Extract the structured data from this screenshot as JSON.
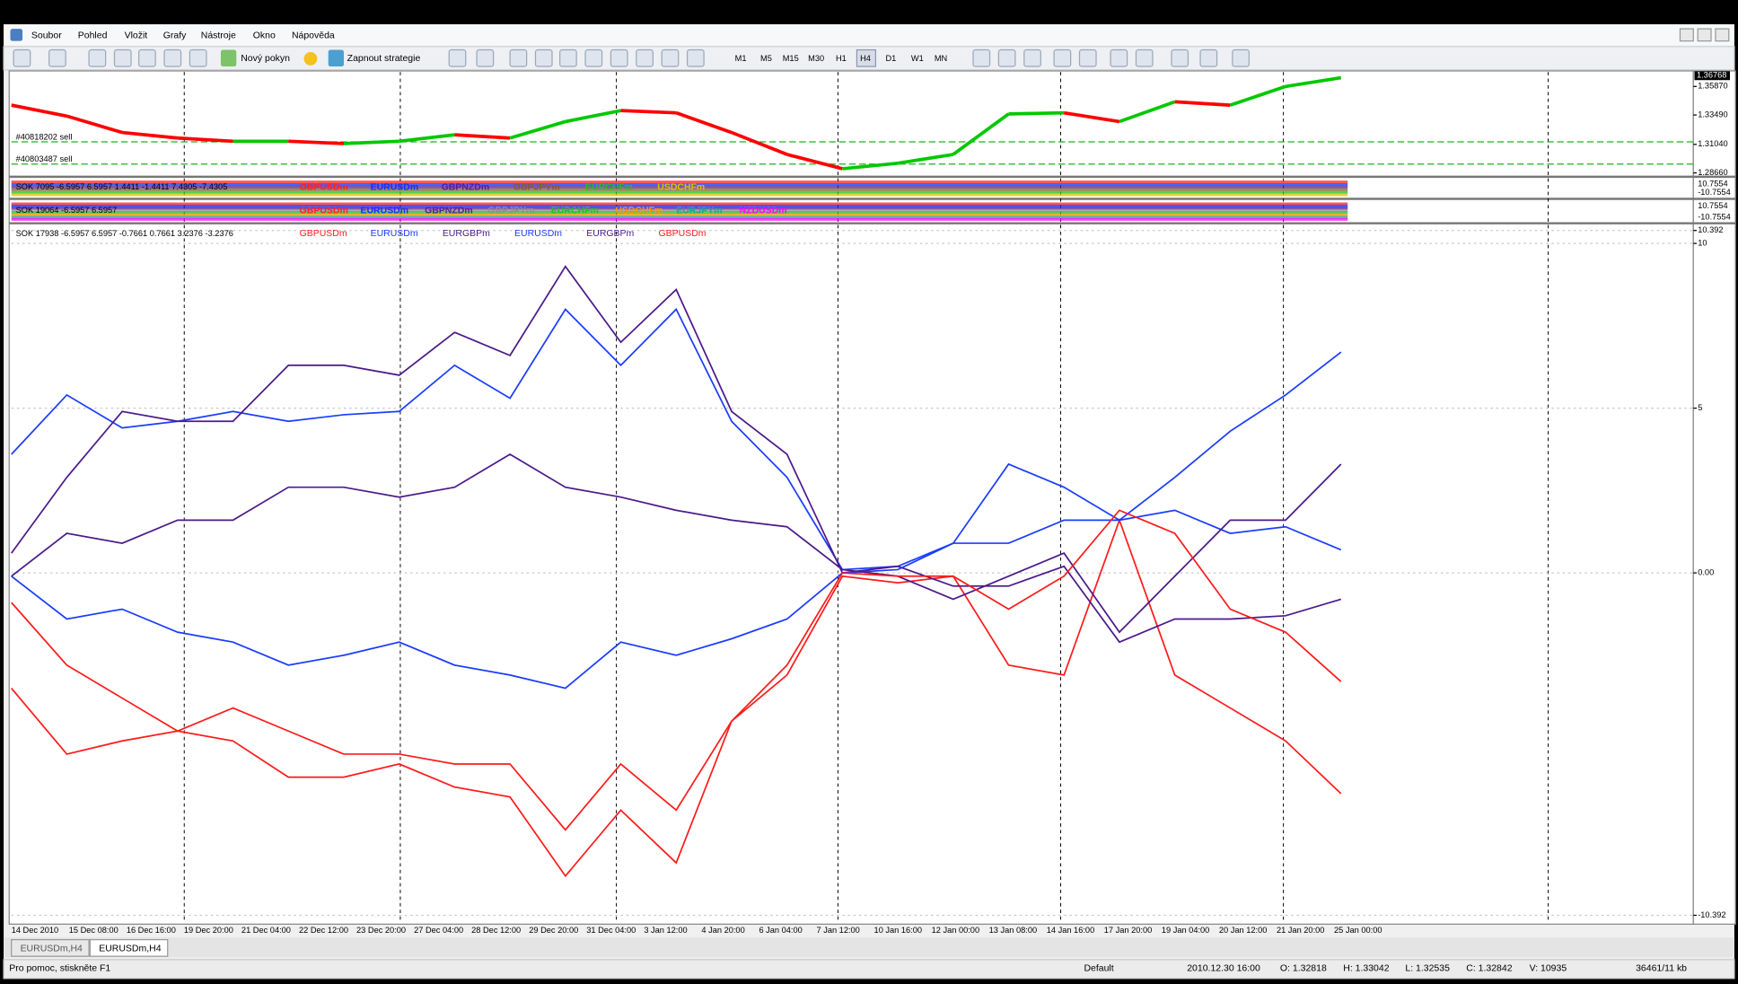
{
  "menu": [
    "Soubor",
    "Pohled",
    "Vložit",
    "Grafy",
    "Nástroje",
    "Okno",
    "Nápověda"
  ],
  "toolbar": {
    "new_order": "Nový pokyn",
    "strategies": "Zapnout strategie",
    "timeframes": [
      "M1",
      "M5",
      "M15",
      "M30",
      "H1",
      "H4",
      "D1",
      "W1",
      "MN"
    ]
  },
  "indicator_windows": [
    {
      "header": "SOK 7095 -6.5957 6.5957 1.4411 -1.4411 7.4305 -7.4305",
      "symbols": [
        {
          "name": "GBPUSDm",
          "color": "#ff2020"
        },
        {
          "name": "EURUSDm",
          "color": "#1030ff"
        },
        {
          "name": "GBPNZDm",
          "color": "#5a1a9a"
        },
        {
          "name": "GBPJPYm",
          "color": "#8b5a2b"
        },
        {
          "name": "EURCHFm",
          "color": "#20c020"
        },
        {
          "name": "USDCHFm",
          "color": "#e0c000"
        }
      ],
      "axis_labels": [
        "10.7554",
        "-10.7554"
      ]
    },
    {
      "header": "SOK 19064 -6.5957 6.5957",
      "symbols": [
        {
          "name": "GBPUSDm",
          "color": "#ff2020"
        },
        {
          "name": "EURUSDm",
          "color": "#1030ff"
        },
        {
          "name": "GBPNZDm",
          "color": "#5a1a9a"
        },
        {
          "name": "GBPJPYm",
          "color": "#909090"
        },
        {
          "name": "EURCHFm",
          "color": "#20c020"
        },
        {
          "name": "USDCHFm",
          "color": "#ff9900"
        },
        {
          "name": "EURJPYm",
          "color": "#20a0a0"
        },
        {
          "name": "NZDUSDm",
          "color": "#ff00ff"
        }
      ],
      "axis_labels": [
        "10.7554",
        "-10.7554"
      ]
    }
  ],
  "chart_data": [
    {
      "type": "line",
      "values": [
        1.3431,
        1.334,
        1.3203,
        1.3157,
        1.313,
        1.313,
        1.3111,
        1.313,
        1.3184,
        1.3157,
        1.3294,
        1.3386,
        1.3367,
        1.3203,
        1.302,
        1.2901,
        1.2947,
        1.302,
        1.3358,
        1.3367,
        1.3294,
        1.3459,
        1.3431,
        1.3587,
        1.366
      ],
      "up_color": "#00c800",
      "down_color": "#ff0000",
      "ylim": [
        1.2848,
        1.3698
      ],
      "yticks": [
        {
          "value": 1.3587,
          "label": "1.35870"
        },
        {
          "value": 1.3349,
          "label": "1.33490"
        },
        {
          "value": 1.3104,
          "label": "1.31040"
        },
        {
          "value": 1.2866,
          "label": "1.28660"
        }
      ],
      "last_price": {
        "value": 1.36768,
        "label": "1.36768"
      },
      "orders": [
        {
          "label": "#40818202 sell",
          "price": 1.3125
        },
        {
          "label": "#40803487 sell",
          "price": 1.294
        }
      ]
    },
    {
      "type": "line",
      "title": "SOK 17938 -6.5957 6.5957 -0.7661 0.7661 3.2376 -3.2376",
      "series": [
        {
          "name": "GBPUSDm",
          "color": "#ff1a1a",
          "values": [
            -3.5,
            -5.5,
            -5.1,
            -4.8,
            -5.1,
            -6.2,
            -6.2,
            -5.8,
            -6.5,
            -6.8,
            -9.2,
            -7.2,
            -8.8,
            -4.5,
            -3.1,
            -0.1,
            -0.3,
            -0.1,
            -2.8,
            -3.1,
            1.6,
            -3.1,
            -4.1,
            -5.1,
            -6.7
          ]
        },
        {
          "name": "EURUSDm",
          "color": "#1a3cff",
          "values": [
            3.6,
            5.4,
            4.4,
            4.6,
            4.9,
            4.6,
            4.8,
            4.9,
            6.3,
            5.3,
            8.0,
            6.3,
            8.0,
            4.6,
            2.9,
            0.1,
            0.2,
            0.9,
            3.3,
            2.6,
            1.6,
            2.9,
            4.3,
            5.4,
            6.7
          ]
        },
        {
          "name": "EURGBPm",
          "color": "#4b1a8a",
          "values": [
            0.6,
            2.9,
            4.9,
            4.6,
            4.6,
            6.3,
            6.3,
            6.0,
            7.3,
            6.6,
            9.3,
            7.0,
            8.6,
            4.9,
            3.6,
            0,
            0.2,
            -0.4,
            -0.4,
            0.2,
            -2.1,
            -1.4,
            -1.4,
            -1.3,
            -0.8
          ]
        },
        {
          "name": "EURUSDm",
          "color": "#1a3cff",
          "values": [
            -0.1,
            -1.4,
            -1.1,
            -1.8,
            -2.1,
            -2.8,
            -2.5,
            -2.1,
            -2.8,
            -3.1,
            -3.5,
            -2.1,
            -2.5,
            -2.0,
            -1.4,
            0,
            0.1,
            0.9,
            0.9,
            1.6,
            1.6,
            1.9,
            1.2,
            1.4,
            0.7
          ]
        },
        {
          "name": "EURGBPm",
          "color": "#4b1a8a",
          "values": [
            -0.1,
            1.2,
            0.9,
            1.6,
            1.6,
            2.6,
            2.6,
            2.3,
            2.6,
            3.6,
            2.6,
            2.3,
            1.9,
            1.6,
            1.4,
            0.1,
            -0.1,
            -0.8,
            -0.1,
            0.6,
            -1.8,
            -0.1,
            1.6,
            1.6,
            3.3
          ]
        },
        {
          "name": "GBPUSDm",
          "color": "#ff1a1a",
          "values": [
            -0.9,
            -2.8,
            -3.8,
            -4.8,
            -4.1,
            -4.8,
            -5.5,
            -5.5,
            -5.8,
            -5.8,
            -7.8,
            -5.8,
            -7.2,
            -4.5,
            -2.8,
            0,
            -0.1,
            -0.1,
            -1.1,
            -0.1,
            1.9,
            1.2,
            -1.1,
            -1.8,
            -3.3
          ]
        }
      ],
      "ylim": [
        -10.392,
        10.392
      ],
      "yticks": [
        10.392,
        10,
        5,
        {
          "value": 0,
          "label": "0.00"
        },
        -10.392
      ],
      "grid": true,
      "xtick_labels": [
        "14 Dec 2010",
        "15 Dec 08:00",
        "16 Dec 16:00",
        "19 Dec 20:00",
        "21 Dec 04:00",
        "22 Dec 12:00",
        "23 Dec 20:00",
        "27 Dec 04:00",
        "28 Dec 12:00",
        "29 Dec 20:00",
        "31 Dec 04:00",
        "3 Jan 12:00",
        "4 Jan 20:00",
        "6 Jan 04:00",
        "7 Jan 12:00",
        "10 Jan 16:00",
        "12 Jan 00:00",
        "13 Jan 08:00",
        "14 Jan 16:00",
        "17 Jan 20:00",
        "19 Jan 04:00",
        "20 Jan 12:00",
        "21 Jan 20:00",
        "25 Jan 00:00"
      ]
    }
  ],
  "tabs": [
    "EURUSDm,H4",
    "EURUSDm,H4"
  ],
  "status_bar": [
    "Pro pomoc, stiskněte F1",
    "Default",
    "2010.12.30 16:00",
    "O: 1.32818",
    "H: 1.33042",
    "L: 1.32535",
    "C: 1.32842",
    "V: 10935",
    "36461/11 kb"
  ]
}
